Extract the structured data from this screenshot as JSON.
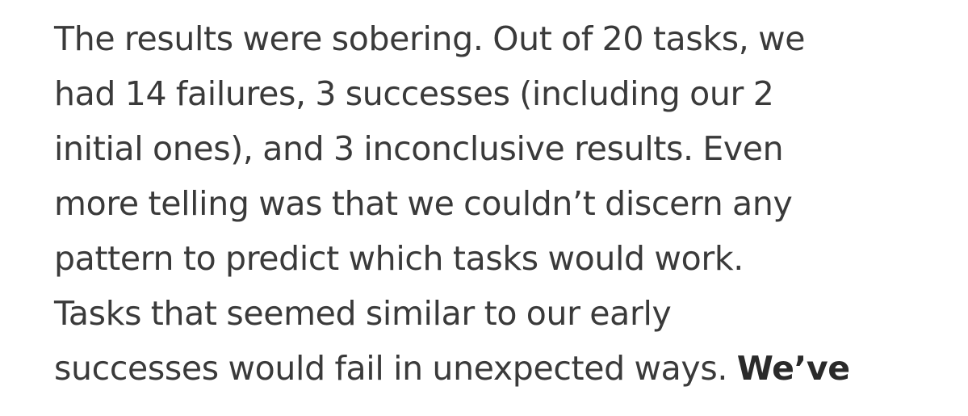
{
  "paragraph": {
    "lines": [
      "The results were sobering. Out of 20 tasks, we",
      "had 14 failures, 3 successes (including our 2",
      "initial ones), and 3 inconclusive results. Even",
      "more telling was that we couldn’t discern any",
      "pattern to predict which tasks would work.",
      "Tasks that seemed similar to our early",
      "successes would fail in unexpected ways."
    ],
    "bold_tail": "We’ve"
  }
}
